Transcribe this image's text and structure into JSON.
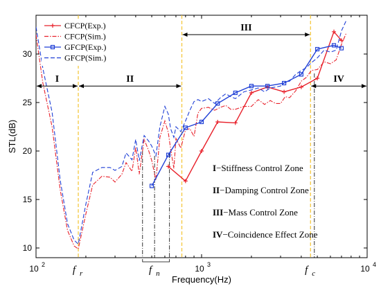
{
  "chart_data": {
    "type": "line",
    "xlabel": "Frequency(Hz)",
    "ylabel": "STL(dB)",
    "x_scale": "log",
    "xlim": [
      100,
      10000
    ],
    "ylim": [
      9,
      34
    ],
    "x_ticks": [
      {
        "value": 100,
        "base": "10",
        "exp": "2"
      },
      {
        "value": 1000,
        "base": "10",
        "exp": "3"
      },
      {
        "value": 10000,
        "base": "10",
        "exp": "4"
      }
    ],
    "y_ticks": [
      10,
      15,
      20,
      25,
      30
    ],
    "grid": false,
    "legend_position": "top-left",
    "series": [
      {
        "name": "CFCP(Exp.)",
        "color": "#e8202a",
        "style": "solid",
        "marker": "plus",
        "x": [
          630,
          800,
          1000,
          1250,
          1600,
          2000,
          2500,
          3150,
          4000,
          5000,
          6300,
          7000
        ],
        "y": [
          18.4,
          16.9,
          20.0,
          23.0,
          22.9,
          26.0,
          26.6,
          26.1,
          26.6,
          27.5,
          32.3,
          31.4
        ]
      },
      {
        "name": "CFCP(Sim.)",
        "color": "#e8202a",
        "style": "dashdot",
        "marker": "none",
        "x": [
          100,
          110,
          125,
          140,
          155,
          170,
          180,
          200,
          220,
          250,
          280,
          300,
          330,
          350,
          380,
          400,
          420,
          450,
          480,
          500,
          530,
          560,
          600,
          630,
          650,
          680,
          700,
          750,
          800,
          850,
          900,
          950,
          1000,
          1100,
          1200,
          1300,
          1400,
          1500,
          1600,
          1800,
          2000,
          2200,
          2400,
          2600,
          2800,
          3000,
          3200,
          3400,
          3700,
          4000,
          4300,
          4600,
          5000,
          5500,
          6000,
          6500,
          7000,
          7500
        ],
        "y": [
          32.0,
          27.0,
          22.5,
          16.0,
          11.8,
          10.2,
          9.9,
          13.5,
          16.5,
          17.4,
          17.3,
          16.8,
          17.6,
          18.8,
          17.9,
          20.4,
          17.6,
          21.2,
          20.0,
          19.0,
          17.0,
          21.4,
          23.1,
          21.9,
          20.2,
          18.2,
          21.3,
          20.3,
          22.2,
          22.3,
          21.5,
          23.9,
          24.4,
          24.5,
          24.2,
          24.5,
          24.7,
          24.3,
          24.3,
          24.6,
          24.6,
          25.3,
          24.8,
          25.2,
          24.9,
          24.9,
          25.6,
          25.5,
          26.2,
          27.2,
          27.6,
          28.3,
          28.4,
          29.2,
          29.0,
          29.4,
          31.0,
          32.2
        ]
      },
      {
        "name": "GFCP(Exp.)",
        "color": "#1f3fd6",
        "style": "solid",
        "marker": "square",
        "x": [
          500,
          630,
          800,
          1000,
          1250,
          1600,
          2000,
          2500,
          3150,
          4000,
          5000,
          6300,
          7000
        ],
        "y": [
          16.4,
          19.6,
          22.4,
          23.0,
          24.9,
          26.0,
          26.7,
          26.7,
          27.0,
          27.9,
          30.5,
          30.9,
          30.6
        ]
      },
      {
        "name": "GFCP(Sim.)",
        "color": "#1f3fd6",
        "style": "dashed",
        "marker": "none",
        "x": [
          100,
          110,
          125,
          140,
          155,
          170,
          180,
          200,
          220,
          250,
          280,
          300,
          330,
          350,
          380,
          400,
          420,
          450,
          480,
          500,
          530,
          560,
          600,
          630,
          650,
          680,
          700,
          750,
          800,
          850,
          900,
          950,
          1000,
          1100,
          1200,
          1300,
          1400,
          1500,
          1600,
          1800,
          2000,
          2200,
          2400,
          2600,
          2800,
          3000,
          3200,
          3400,
          3700,
          4000,
          4300,
          4600,
          5000,
          5500,
          6000,
          6500,
          7000,
          7500
        ],
        "y": [
          32.8,
          28.5,
          24.0,
          17.0,
          12.5,
          10.8,
          10.4,
          14.5,
          17.8,
          18.3,
          18.3,
          18.0,
          18.4,
          19.8,
          19.1,
          21.2,
          19.0,
          21.6,
          21.0,
          20.5,
          19.5,
          22.5,
          24.6,
          23.8,
          22.3,
          21.4,
          22.5,
          22.0,
          23.1,
          24.2,
          25.1,
          25.3,
          25.1,
          25.4,
          24.9,
          25.5,
          25.9,
          25.6,
          25.4,
          26.1,
          26.3,
          26.5,
          26.1,
          26.5,
          26.6,
          26.7,
          27.1,
          27.2,
          27.9,
          28.3,
          28.6,
          29.1,
          29.6,
          30.4,
          30.2,
          30.4,
          32.4,
          33.5
        ]
      }
    ],
    "zone_boundaries": [
      {
        "value": 180,
        "color": "#f4c430"
      },
      {
        "value": 760,
        "color": "#f4c430"
      },
      {
        "value": 4550,
        "color": "#f4c430"
      }
    ],
    "zones": [
      {
        "label": "I",
        "from": 100,
        "to": 180,
        "y": 26.7
      },
      {
        "label": "II",
        "from": 180,
        "to": 760,
        "y": 26.7
      },
      {
        "label": "III",
        "from": 760,
        "to": 4550,
        "y": 32.0
      },
      {
        "label": "IV",
        "from": 4550,
        "to": 10000,
        "y": 26.7
      }
    ],
    "marker_lines": [
      {
        "x": 440,
        "y_top": 20.0
      },
      {
        "x": 520,
        "y_top": 19.5
      },
      {
        "x": 640,
        "y_top": 19.7
      },
      {
        "x": 4800,
        "y_top": 28.0
      }
    ],
    "freq_labels": [
      {
        "base": "f",
        "sub": "r",
        "x": 180
      },
      {
        "base": "f",
        "sub": "n",
        "x": 520
      },
      {
        "base": "f",
        "sub": "c",
        "x": 4550
      }
    ],
    "zone_legend": [
      {
        "roman": "I",
        "text": "−Stiffness Control Zone"
      },
      {
        "roman": "II",
        "text": "−Damping Control Zone"
      },
      {
        "roman": "III",
        "text": "−Mass Control Zone"
      },
      {
        "roman": "IV",
        "text": "−Coincidence Effect Zone"
      }
    ]
  }
}
